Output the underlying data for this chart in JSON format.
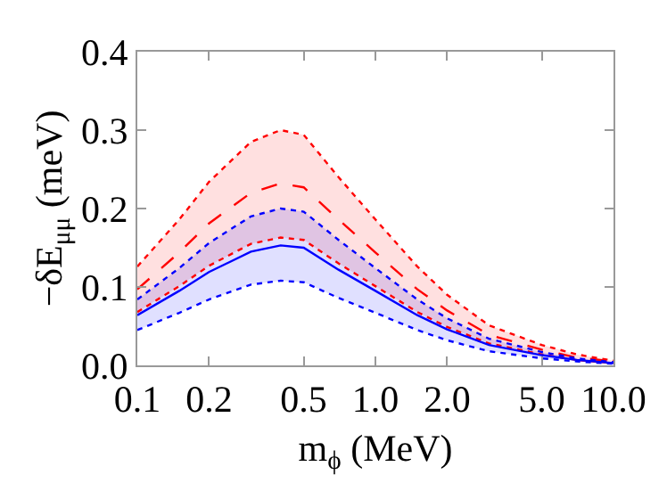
{
  "chart_data": {
    "type": "line",
    "xlabel": "m$_{ϕ}$ (MeV)",
    "ylabel": "−δE$_{μμ}$ (meV)",
    "x": [
      0.1,
      0.15,
      0.2,
      0.3,
      0.4,
      0.5,
      0.7,
      1,
      1.5,
      2,
      3,
      5,
      7,
      10
    ],
    "log": "x",
    "xlim": [
      0.1,
      10
    ],
    "xticks": [
      {
        "value": 0.1,
        "label": "0.1"
      },
      {
        "value": 0.2,
        "label": "0.2"
      },
      {
        "value": 0.5,
        "label": "0.5"
      },
      {
        "value": 1,
        "label": "1.0"
      },
      {
        "value": 2,
        "label": "2.0"
      },
      {
        "value": 5,
        "label": "5.0"
      },
      {
        "value": 10,
        "label": "10.0"
      }
    ],
    "ylim": [
      0,
      0.4
    ],
    "yticks": [
      {
        "value": 0,
        "label": "0.0"
      },
      0.1,
      0.2,
      0.3,
      0.4
    ],
    "series": [
      {
        "color": "#ff0000",
        "line_style": "dashed",
        "values": [
          0.097,
          0.144,
          0.181,
          0.22,
          0.232,
          0.227,
          0.186,
          0.144,
          0.097,
          0.07,
          0.039,
          0.02,
          0.01,
          0.005
        ],
        "lower": [
          0.068,
          0.101,
          0.127,
          0.155,
          0.163,
          0.16,
          0.13,
          0.101,
          0.068,
          0.049,
          0.028,
          0.014,
          0.007,
          0.003
        ],
        "upper": [
          0.126,
          0.186,
          0.234,
          0.285,
          0.3,
          0.294,
          0.24,
          0.186,
          0.126,
          0.09,
          0.051,
          0.026,
          0.014,
          0.006
        ]
      },
      {
        "color": "#ff0000",
        "line_style": "dotted",
        "values": [
          0.068,
          0.101,
          0.127,
          0.155,
          0.163,
          0.16,
          0.13,
          0.101,
          0.068,
          0.049,
          0.028,
          0.014,
          0.007,
          0.003
        ]
      },
      {
        "color": "#ff0000",
        "line_style": "dotted",
        "values": [
          0.126,
          0.186,
          0.234,
          0.285,
          0.3,
          0.294,
          0.24,
          0.186,
          0.126,
          0.09,
          0.051,
          0.026,
          0.014,
          0.006
        ]
      },
      {
        "color": "#0000ff",
        "line_style": "solid",
        "values": [
          0.064,
          0.095,
          0.119,
          0.145,
          0.153,
          0.15,
          0.122,
          0.095,
          0.064,
          0.046,
          0.026,
          0.013,
          0.007,
          0.003
        ],
        "lower": [
          0.045,
          0.067,
          0.084,
          0.103,
          0.108,
          0.106,
          0.086,
          0.067,
          0.045,
          0.032,
          0.018,
          0.009,
          0.005,
          0.002
        ],
        "upper": [
          0.084,
          0.124,
          0.156,
          0.19,
          0.2,
          0.196,
          0.16,
          0.124,
          0.084,
          0.06,
          0.034,
          0.017,
          0.009,
          0.004
        ]
      },
      {
        "color": "#0000ff",
        "line_style": "dotted",
        "values": [
          0.045,
          0.067,
          0.084,
          0.103,
          0.108,
          0.106,
          0.086,
          0.067,
          0.045,
          0.032,
          0.018,
          0.009,
          0.005,
          0.002
        ]
      },
      {
        "color": "#0000ff",
        "line_style": "dotted",
        "values": [
          0.084,
          0.124,
          0.156,
          0.19,
          0.2,
          0.196,
          0.16,
          0.124,
          0.084,
          0.06,
          0.034,
          0.017,
          0.009,
          0.004
        ]
      }
    ]
  }
}
